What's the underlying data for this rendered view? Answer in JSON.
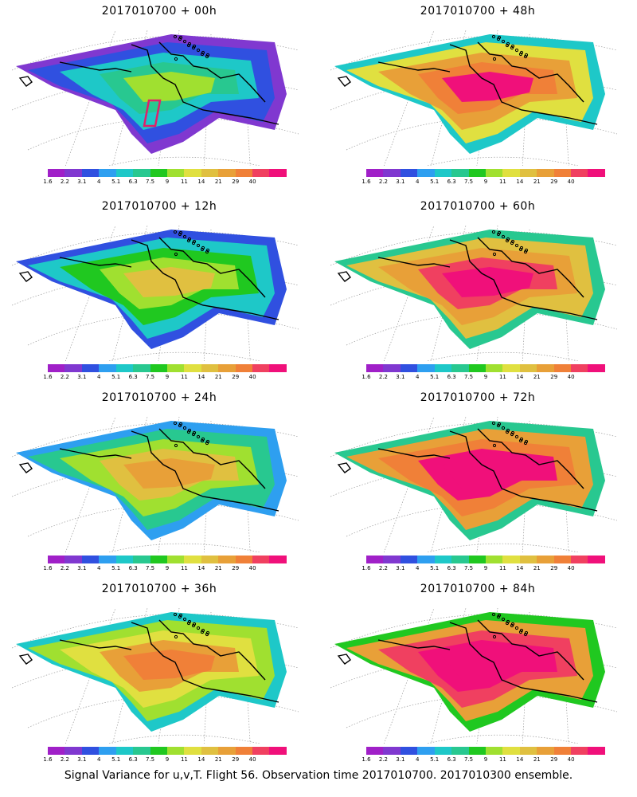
{
  "panels": [
    {
      "title": "2017010700  + 00h",
      "level": 0.15,
      "box": true
    },
    {
      "title": "2017010700  + 48h",
      "level": 0.62,
      "box": false
    },
    {
      "title": "2017010700  + 12h",
      "level": 0.32,
      "box": false
    },
    {
      "title": "2017010700  + 60h",
      "level": 0.68,
      "box": false
    },
    {
      "title": "2017010700  + 24h",
      "level": 0.42,
      "box": false
    },
    {
      "title": "2017010700  + 72h",
      "level": 0.75,
      "box": false
    },
    {
      "title": "2017010700  + 36h",
      "level": 0.5,
      "box": false
    },
    {
      "title": "2017010700  + 84h",
      "level": 0.8,
      "box": false
    }
  ],
  "colorbar": {
    "colors": [
      "#a020c8",
      "#8038d0",
      "#3050e0",
      "#2e9ff0",
      "#1ec8c8",
      "#28c890",
      "#20c820",
      "#a0e030",
      "#e0e040",
      "#e0c040",
      "#e8a038",
      "#f08038",
      "#f04060",
      "#f0107a"
    ],
    "labels": [
      "1.6",
      "2.2",
      "3.1",
      "4",
      "5.1",
      "6.3",
      "7.5",
      "9",
      "11",
      "14",
      "21",
      "29",
      "40"
    ]
  },
  "footer": "Signal Variance for u,v,T. Flight 56. Observation time 2017010700. 2017010300 ensemble."
}
